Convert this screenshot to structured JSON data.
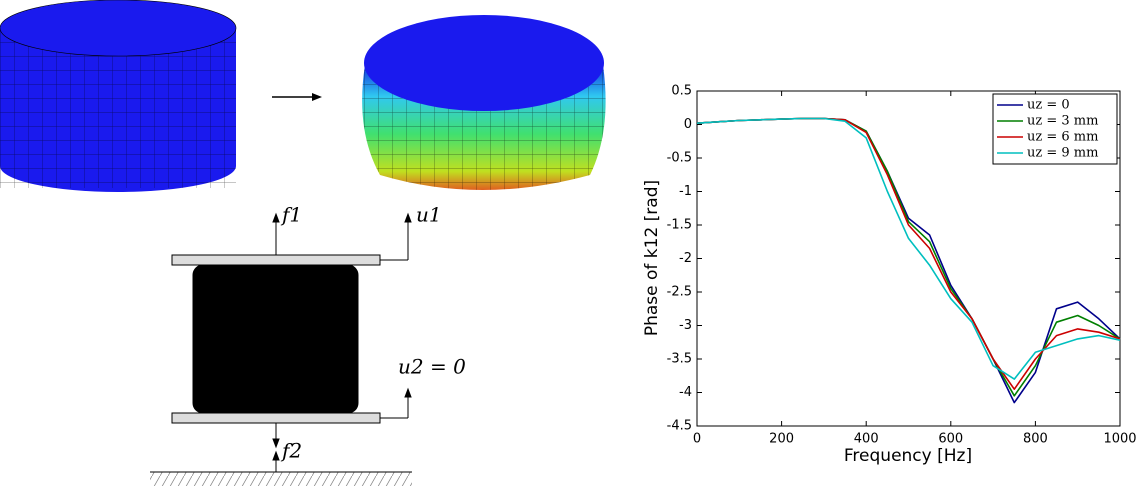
{
  "diagram": {
    "labels": [
      "f1",
      "u1",
      "u2 = 0",
      "f2"
    ]
  },
  "chart_data": {
    "type": "line",
    "xlabel": "Frequency [Hz]",
    "ylabel": "Phase of k12 [rad]",
    "x": [
      0,
      50,
      100,
      150,
      200,
      250,
      300,
      350,
      400,
      450,
      500,
      550,
      600,
      650,
      700,
      750,
      800,
      850,
      900,
      950,
      1000
    ],
    "series": [
      {
        "name": "uz = 0",
        "color": "#00008b",
        "values": [
          0.02,
          0.04,
          0.06,
          0.07,
          0.08,
          0.09,
          0.09,
          0.07,
          -0.1,
          -0.7,
          -1.4,
          -1.65,
          -2.4,
          -2.9,
          -3.5,
          -4.15,
          -3.7,
          -2.75,
          -2.65,
          -2.9,
          -3.2
        ]
      },
      {
        "name": "uz = 3 mm",
        "color": "#007f00",
        "values": [
          0.02,
          0.04,
          0.06,
          0.07,
          0.08,
          0.09,
          0.09,
          0.07,
          -0.1,
          -0.7,
          -1.45,
          -1.75,
          -2.45,
          -2.9,
          -3.5,
          -4.05,
          -3.6,
          -2.95,
          -2.85,
          -3.0,
          -3.2
        ]
      },
      {
        "name": "uz = 6 mm",
        "color": "#cc0000",
        "values": [
          0.02,
          0.04,
          0.06,
          0.07,
          0.08,
          0.09,
          0.09,
          0.07,
          -0.12,
          -0.75,
          -1.5,
          -1.85,
          -2.5,
          -2.9,
          -3.5,
          -3.95,
          -3.5,
          -3.15,
          -3.05,
          -3.1,
          -3.2
        ]
      },
      {
        "name": "uz = 9 mm",
        "color": "#00bfbf",
        "values": [
          0.02,
          0.04,
          0.06,
          0.07,
          0.08,
          0.09,
          0.09,
          0.05,
          -0.2,
          -1.0,
          -1.7,
          -2.1,
          -2.6,
          -2.95,
          -3.6,
          -3.8,
          -3.4,
          -3.3,
          -3.2,
          -3.15,
          -3.22
        ]
      }
    ],
    "xlim": [
      0,
      1000
    ],
    "xticks": [
      0,
      200,
      400,
      600,
      800,
      1000
    ],
    "ylim": [
      -4.5,
      0.5
    ],
    "yticks": [
      0.5,
      0,
      -0.5,
      -1,
      -1.5,
      -2,
      -2.5,
      -3,
      -3.5,
      -4,
      -4.5
    ],
    "grid": false,
    "legend": "upper right"
  }
}
